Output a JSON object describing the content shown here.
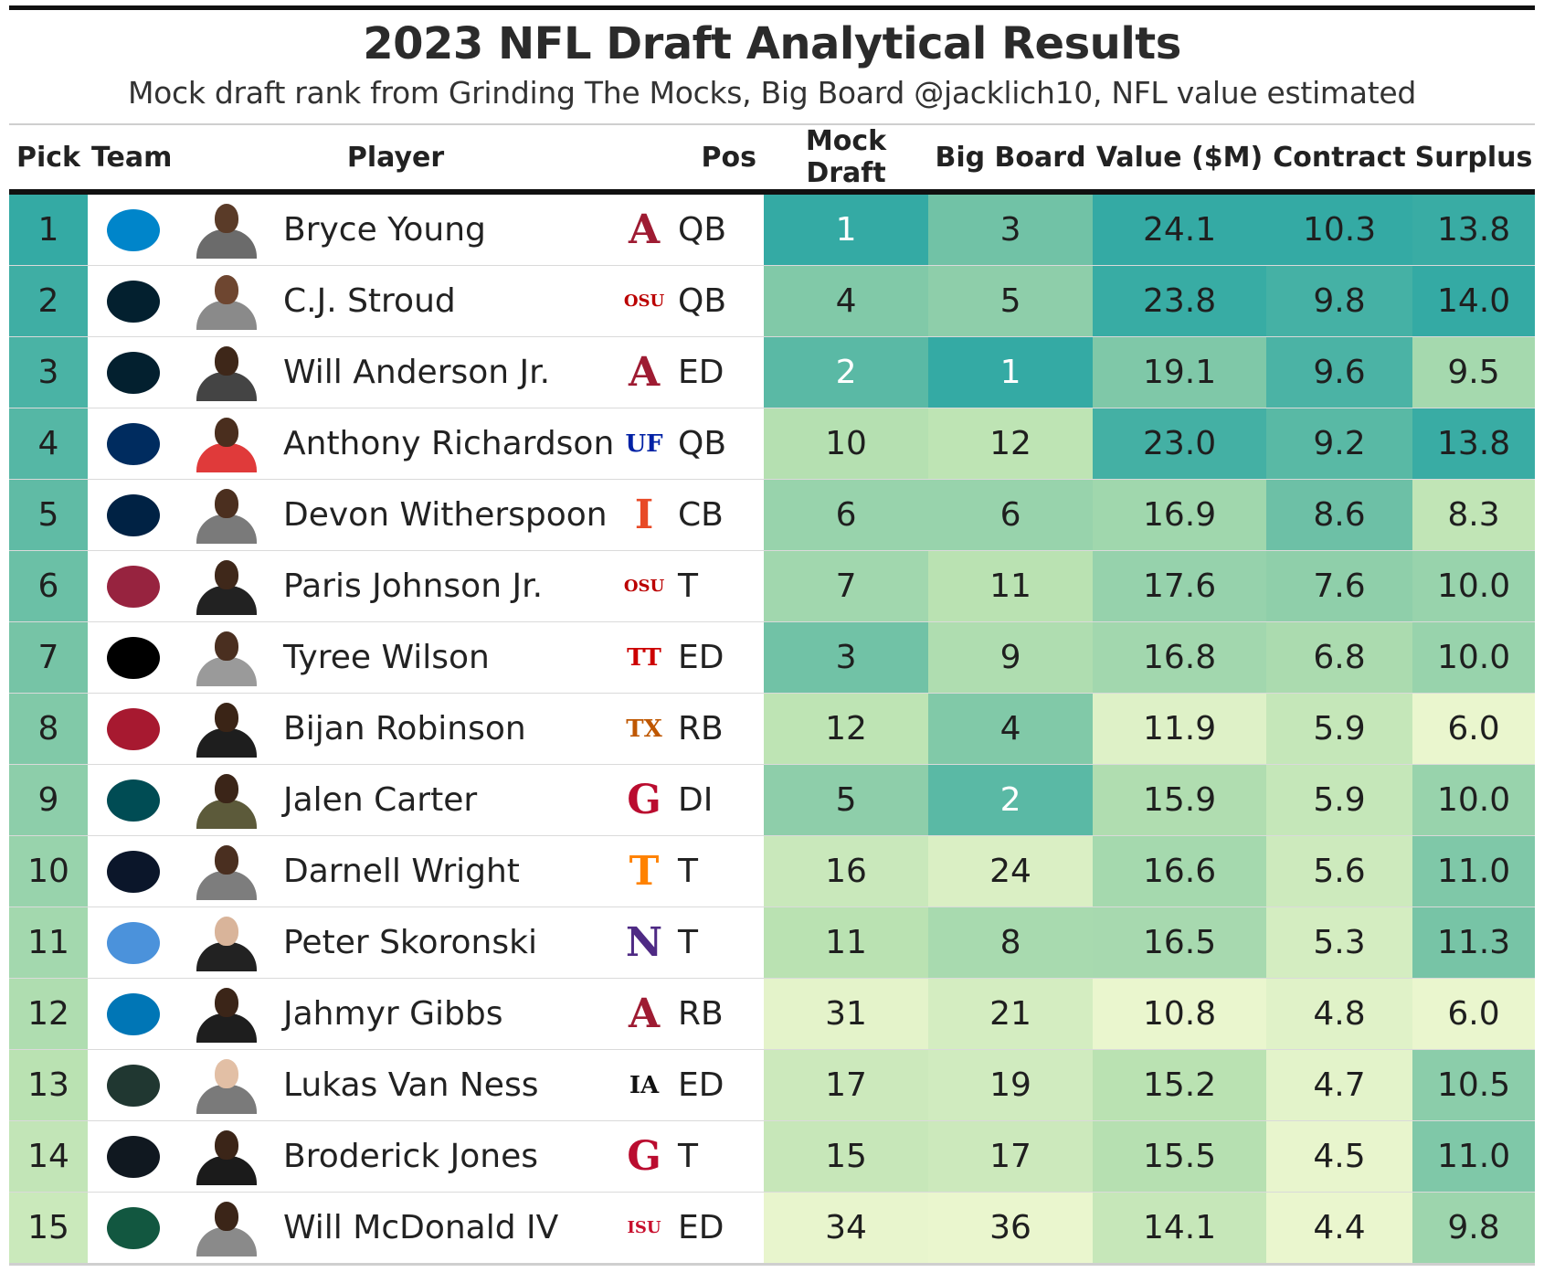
{
  "title": "2023 NFL Draft Analytical Results",
  "subtitle": "Mock draft rank from Grinding The Mocks, Big Board @jacklich10, NFL value estimated",
  "headers": {
    "pick": "Pick",
    "team": "Team",
    "player": "Player",
    "pos": "Pos",
    "mock": "Mock Draft",
    "big": "Big Board",
    "value": "Value ($M)",
    "contract": "Contract",
    "surplus": "Surplus"
  },
  "rows": [
    {
      "pick": "1",
      "team_icon": "panthers-logo-icon",
      "team_color": "#0085CA",
      "player": "Bryce Young",
      "college_icon": "alabama-logo-icon",
      "college_mark": "A",
      "college_color": "#9E1B32",
      "pos": "QB",
      "mock": "1",
      "big": "3",
      "value": "24.1",
      "contract": "10.3",
      "surplus": "13.8",
      "skin": "#5a3b28",
      "shirt": "#6b6b6b"
    },
    {
      "pick": "2",
      "team_icon": "texans-logo-icon",
      "team_color": "#03202F",
      "player": "C.J. Stroud",
      "college_icon": "ohio-state-logo-icon",
      "college_mark": "OSU",
      "college_color": "#BB0000",
      "pos": "QB",
      "mock": "4",
      "big": "5",
      "value": "23.8",
      "contract": "9.8",
      "surplus": "14.0",
      "skin": "#6e4630",
      "shirt": "#8a8a8a"
    },
    {
      "pick": "3",
      "team_icon": "texans-logo-icon",
      "team_color": "#03202F",
      "player": "Will Anderson Jr.",
      "college_icon": "alabama-logo-icon",
      "college_mark": "A",
      "college_color": "#9E1B32",
      "pos": "ED",
      "mock": "2",
      "big": "1",
      "value": "19.1",
      "contract": "9.6",
      "surplus": "9.5",
      "skin": "#3e2719",
      "shirt": "#444444"
    },
    {
      "pick": "4",
      "team_icon": "colts-logo-icon",
      "team_color": "#002C5F",
      "player": "Anthony Richardson",
      "college_icon": "florida-logo-icon",
      "college_mark": "UF",
      "college_color": "#0021A5",
      "pos": "QB",
      "mock": "10",
      "big": "12",
      "value": "23.0",
      "contract": "9.2",
      "surplus": "13.8",
      "skin": "#4a2e1e",
      "shirt": "#e03a3a"
    },
    {
      "pick": "5",
      "team_icon": "seahawks-logo-icon",
      "team_color": "#002244",
      "player": "Devon Witherspoon",
      "college_icon": "illinois-logo-icon",
      "college_mark": "I",
      "college_color": "#E84A27",
      "pos": "CB",
      "mock": "6",
      "big": "6",
      "value": "16.9",
      "contract": "8.6",
      "surplus": "8.3",
      "skin": "#4b2f1f",
      "shirt": "#7a7a7a"
    },
    {
      "pick": "6",
      "team_icon": "cardinals-logo-icon",
      "team_color": "#97233F",
      "player": "Paris Johnson Jr.",
      "college_icon": "ohio-state-logo-icon",
      "college_mark": "OSU",
      "college_color": "#BB0000",
      "pos": "T",
      "mock": "7",
      "big": "11",
      "value": "17.6",
      "contract": "7.6",
      "surplus": "10.0",
      "skin": "#3f281a",
      "shirt": "#222222"
    },
    {
      "pick": "7",
      "team_icon": "raiders-logo-icon",
      "team_color": "#000000",
      "player": "Tyree Wilson",
      "college_icon": "texas-tech-logo-icon",
      "college_mark": "TT",
      "college_color": "#CC0000",
      "pos": "ED",
      "mock": "3",
      "big": "9",
      "value": "16.8",
      "contract": "6.8",
      "surplus": "10.0",
      "skin": "#4a2f20",
      "shirt": "#9a9a9a"
    },
    {
      "pick": "8",
      "team_icon": "falcons-logo-icon",
      "team_color": "#A71930",
      "player": "Bijan Robinson",
      "college_icon": "texas-logo-icon",
      "college_mark": "TX",
      "college_color": "#BF5700",
      "pos": "RB",
      "mock": "12",
      "big": "4",
      "value": "11.9",
      "contract": "5.9",
      "surplus": "6.0",
      "skin": "#3a2416",
      "shirt": "#1e1e1e"
    },
    {
      "pick": "9",
      "team_icon": "eagles-logo-icon",
      "team_color": "#004C54",
      "player": "Jalen Carter",
      "college_icon": "georgia-logo-icon",
      "college_mark": "G",
      "college_color": "#BA0C2F",
      "pos": "DI",
      "mock": "5",
      "big": "2",
      "value": "15.9",
      "contract": "5.9",
      "surplus": "10.0",
      "skin": "#3b2518",
      "shirt": "#5c5a3a"
    },
    {
      "pick": "10",
      "team_icon": "bears-logo-icon",
      "team_color": "#0B162A",
      "player": "Darnell Wright",
      "college_icon": "tennessee-logo-icon",
      "college_mark": "T",
      "college_color": "#FF8200",
      "pos": "T",
      "mock": "16",
      "big": "24",
      "value": "16.6",
      "contract": "5.6",
      "surplus": "11.0",
      "skin": "#4a2f20",
      "shirt": "#7d7d7d"
    },
    {
      "pick": "11",
      "team_icon": "titans-logo-icon",
      "team_color": "#4B92DB",
      "player": "Peter Skoronski",
      "college_icon": "northwestern-logo-icon",
      "college_mark": "N",
      "college_color": "#4E2A84",
      "pos": "T",
      "mock": "11",
      "big": "8",
      "value": "16.5",
      "contract": "5.3",
      "surplus": "11.3",
      "skin": "#d9b49a",
      "shirt": "#222222"
    },
    {
      "pick": "12",
      "team_icon": "lions-logo-icon",
      "team_color": "#0076B6",
      "player": "Jahmyr Gibbs",
      "college_icon": "alabama-logo-icon",
      "college_mark": "A",
      "college_color": "#9E1B32",
      "pos": "RB",
      "mock": "31",
      "big": "21",
      "value": "10.8",
      "contract": "4.8",
      "surplus": "6.0",
      "skin": "#3b2518",
      "shirt": "#1e1e1e"
    },
    {
      "pick": "13",
      "team_icon": "packers-logo-icon",
      "team_color": "#203731",
      "player": "Lukas Van Ness",
      "college_icon": "iowa-logo-icon",
      "college_mark": "IA",
      "college_color": "#111111",
      "pos": "ED",
      "mock": "17",
      "big": "19",
      "value": "15.2",
      "contract": "4.7",
      "surplus": "10.5",
      "skin": "#e2bfa5",
      "shirt": "#7a7a7a"
    },
    {
      "pick": "14",
      "team_icon": "steelers-logo-icon",
      "team_color": "#101820",
      "player": "Broderick Jones",
      "college_icon": "georgia-logo-icon",
      "college_mark": "G",
      "college_color": "#BA0C2F",
      "pos": "T",
      "mock": "15",
      "big": "17",
      "value": "15.5",
      "contract": "4.5",
      "surplus": "11.0",
      "skin": "#3b2518",
      "shirt": "#1b1b1b"
    },
    {
      "pick": "15",
      "team_icon": "jets-logo-icon",
      "team_color": "#125740",
      "player": "Will McDonald IV",
      "college_icon": "iowa-state-logo-icon",
      "college_mark": "ISU",
      "college_color": "#C8102E",
      "pos": "ED",
      "mock": "34",
      "big": "36",
      "value": "14.1",
      "contract": "4.4",
      "surplus": "9.8",
      "skin": "#3b2518",
      "shirt": "#8a8a8a"
    }
  ]
}
